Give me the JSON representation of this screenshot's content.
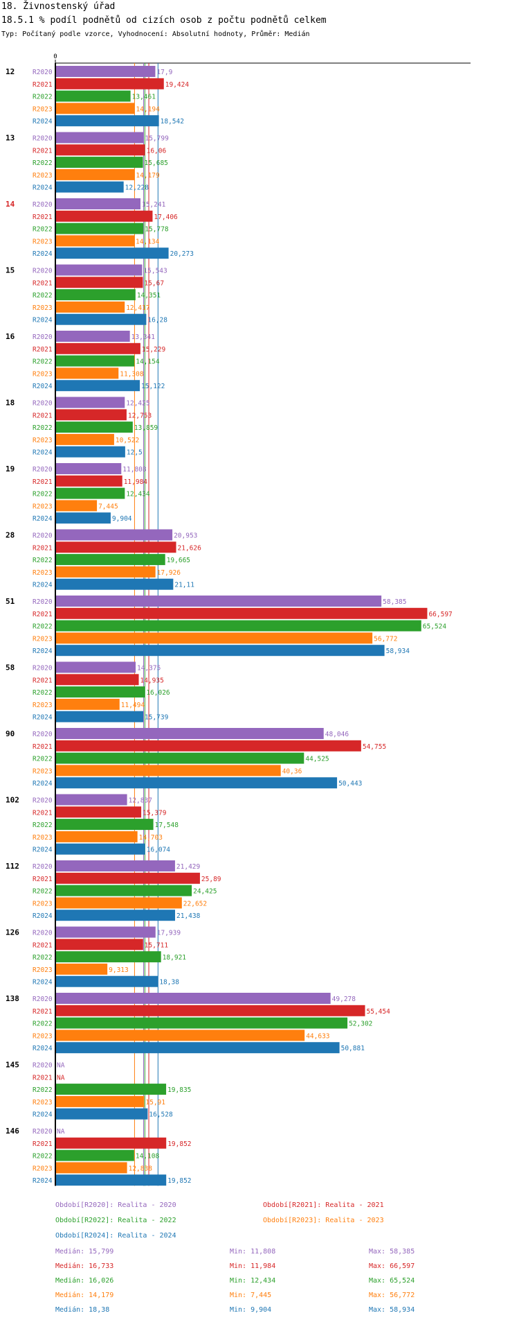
{
  "header": {
    "title": "18. Živnostenský úřad",
    "subtitle": "18.5.1 % podíl podnětů od cizích osob z počtu podnětů celkem",
    "type_line": "Typ: Počítaný podle vzorce, Vyhodnocení: Absolutní hodnoty, Průměr: Medián"
  },
  "chart_data": {
    "type": "bar",
    "orientation": "horizontal",
    "axis_zero_label": "0",
    "xlim": [
      0,
      80
    ],
    "series_names": [
      "R2020",
      "R2021",
      "R2022",
      "R2023",
      "R2024"
    ],
    "colors": {
      "R2020": "#9467bd",
      "R2021": "#d62728",
      "R2022": "#2ca02c",
      "R2023": "#ff7f0e",
      "R2024": "#1f77b4"
    },
    "highlighted_group": "14",
    "highlight_color": "#d62728",
    "groups": [
      {
        "label": "12",
        "values": [
          17.9,
          19.424,
          13.461,
          14.194,
          18.542
        ],
        "labels": [
          "17,9",
          "19,424",
          "13,461",
          "14,194",
          "18,542"
        ]
      },
      {
        "label": "13",
        "values": [
          15.799,
          16.06,
          15.685,
          14.179,
          12.228
        ],
        "labels": [
          "15,799",
          "16,06",
          "15,685",
          "14,179",
          "12,228"
        ]
      },
      {
        "label": "14",
        "values": [
          15.241,
          17.406,
          15.778,
          14.134,
          20.273
        ],
        "labels": [
          "15,241",
          "17,406",
          "15,778",
          "14,134",
          "20,273"
        ]
      },
      {
        "label": "15",
        "values": [
          15.543,
          15.67,
          14.351,
          12.417,
          16.28
        ],
        "labels": [
          "15,543",
          "15,67",
          "14,351",
          "12,417",
          "16,28"
        ]
      },
      {
        "label": "16",
        "values": [
          13.341,
          15.229,
          14.154,
          11.308,
          15.122
        ],
        "labels": [
          "13,341",
          "15,229",
          "14,154",
          "11,308",
          "15,122"
        ]
      },
      {
        "label": "18",
        "values": [
          12.425,
          12.753,
          13.859,
          10.522,
          12.5
        ],
        "labels": [
          "12,425",
          "12,753",
          "13,859",
          "10,522",
          "12,5"
        ]
      },
      {
        "label": "19",
        "values": [
          11.808,
          11.984,
          12.434,
          7.445,
          9.904
        ],
        "labels": [
          "11,808",
          "11,984",
          "12,434",
          "7,445",
          "9,904"
        ]
      },
      {
        "label": "28",
        "values": [
          20.953,
          21.626,
          19.665,
          17.926,
          21.11
        ],
        "labels": [
          "20,953",
          "21,626",
          "19,665",
          "17,926",
          "21,11"
        ]
      },
      {
        "label": "51",
        "values": [
          58.385,
          66.597,
          65.524,
          56.772,
          58.934
        ],
        "labels": [
          "58,385",
          "66,597",
          "65,524",
          "56,772",
          "58,934"
        ]
      },
      {
        "label": "58",
        "values": [
          14.375,
          14.935,
          16.026,
          11.494,
          15.739
        ],
        "labels": [
          "14,375",
          "14,935",
          "16,026",
          "11,494",
          "15,739"
        ]
      },
      {
        "label": "90",
        "values": [
          48.046,
          54.755,
          44.525,
          40.36,
          50.443
        ],
        "labels": [
          "48,046",
          "54,755",
          "44,525",
          "40,36",
          "50,443"
        ]
      },
      {
        "label": "102",
        "values": [
          12.837,
          15.379,
          17.548,
          14.703,
          16.074
        ],
        "labels": [
          "12,837",
          "15,379",
          "17,548",
          "14,703",
          "16,074"
        ]
      },
      {
        "label": "112",
        "values": [
          21.429,
          25.89,
          24.425,
          22.652,
          21.438
        ],
        "labels": [
          "21,429",
          "25,89",
          "24,425",
          "22,652",
          "21,438"
        ]
      },
      {
        "label": "126",
        "values": [
          17.939,
          15.711,
          18.921,
          9.313,
          18.38
        ],
        "labels": [
          "17,939",
          "15,711",
          "18,921",
          "9,313",
          "18,38"
        ]
      },
      {
        "label": "138",
        "values": [
          49.278,
          55.454,
          52.302,
          44.633,
          50.881
        ],
        "labels": [
          "49,278",
          "55,454",
          "52,302",
          "44,633",
          "50,881"
        ]
      },
      {
        "label": "145",
        "values": [
          null,
          null,
          19.835,
          15.91,
          16.528
        ],
        "labels": [
          "NA",
          "NA",
          "19,835",
          "15,91",
          "16,528"
        ]
      },
      {
        "label": "146",
        "values": [
          null,
          19.852,
          14.108,
          12.838,
          19.852
        ],
        "labels": [
          "NA",
          "19,852",
          "14,108",
          "12,838",
          "19,852"
        ]
      }
    ],
    "medians": [
      15.799,
      16.733,
      16.026,
      14.179,
      18.38
    ]
  },
  "legend": {
    "periods": [
      {
        "text": "Období[R2020]: Realita - 2020",
        "color": "#9467bd"
      },
      {
        "text": "Období[R2021]: Realita - 2021",
        "color": "#d62728"
      },
      {
        "text": "Období[R2022]: Realita - 2022",
        "color": "#2ca02c"
      },
      {
        "text": "Období[R2023]: Realita - 2023",
        "color": "#ff7f0e"
      },
      {
        "text": "Období[R2024]: Realita - 2024",
        "color": "#1f77b4"
      }
    ],
    "stats": [
      {
        "median": "Medián: 15,799",
        "min": "Min: 11,808",
        "max": "Max: 58,385",
        "color": "#9467bd"
      },
      {
        "median": "Medián: 16,733",
        "min": "Min: 11,984",
        "max": "Max: 66,597",
        "color": "#d62728"
      },
      {
        "median": "Medián: 16,026",
        "min": "Min: 12,434",
        "max": "Max: 65,524",
        "color": "#2ca02c"
      },
      {
        "median": "Medián: 14,179",
        "min": "Min: 7,445",
        "max": "Max: 56,772",
        "color": "#ff7f0e"
      },
      {
        "median": "Medián: 18,38",
        "min": "Min: 9,904",
        "max": "Max: 58,934",
        "color": "#1f77b4"
      }
    ]
  }
}
